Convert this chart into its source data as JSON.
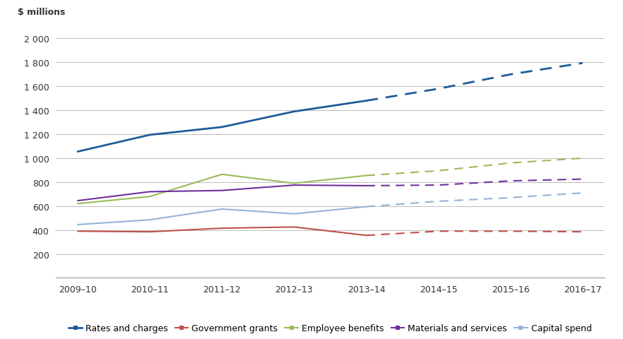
{
  "years_all": [
    "2009–10",
    "2010–11",
    "2011–12",
    "2012–13",
    "2013–14",
    "2014–15",
    "2015–16",
    "2016–17"
  ],
  "series": {
    "Rates and charges": {
      "actual": [
        1055,
        1195,
        1260,
        1390,
        1480
      ],
      "forecast": [
        1480,
        1580,
        1700,
        1795
      ],
      "color": "#1F5C99",
      "linewidth": 2.0
    },
    "Government grants": {
      "actual": [
        390,
        385,
        415,
        425,
        355
      ],
      "forecast": [
        355,
        390,
        390,
        385
      ],
      "color": "#C0504D",
      "linewidth": 1.5
    },
    "Employee benefits": {
      "actual": [
        620,
        680,
        865,
        790,
        855
      ],
      "forecast": [
        855,
        895,
        960,
        1000
      ],
      "color": "#9BBB59",
      "linewidth": 1.5
    },
    "Materials and services": {
      "actual": [
        645,
        720,
        730,
        775,
        770
      ],
      "forecast": [
        770,
        775,
        810,
        825
      ],
      "color": "#7030A0",
      "linewidth": 1.5
    },
    "Capital spend": {
      "actual": [
        445,
        485,
        575,
        535,
        595
      ],
      "forecast": [
        595,
        640,
        670,
        710
      ],
      "color": "#95B3D7",
      "linewidth": 1.5
    }
  },
  "ylabel": "$ millions",
  "ylim": [
    0,
    2100
  ],
  "yticks": [
    200,
    400,
    600,
    800,
    1000,
    1200,
    1400,
    1600,
    1800,
    2000
  ],
  "ytick_labels": [
    "200",
    "400",
    "600",
    "800",
    "1 000",
    "1 200",
    "1 400",
    "1 600",
    "1 800",
    "2 000"
  ],
  "background_color": "#FFFFFF",
  "grid_color": "#BBBBBB",
  "legend_order": [
    "Rates and charges",
    "Government grants",
    "Employee benefits",
    "Materials and services",
    "Capital spend"
  ]
}
